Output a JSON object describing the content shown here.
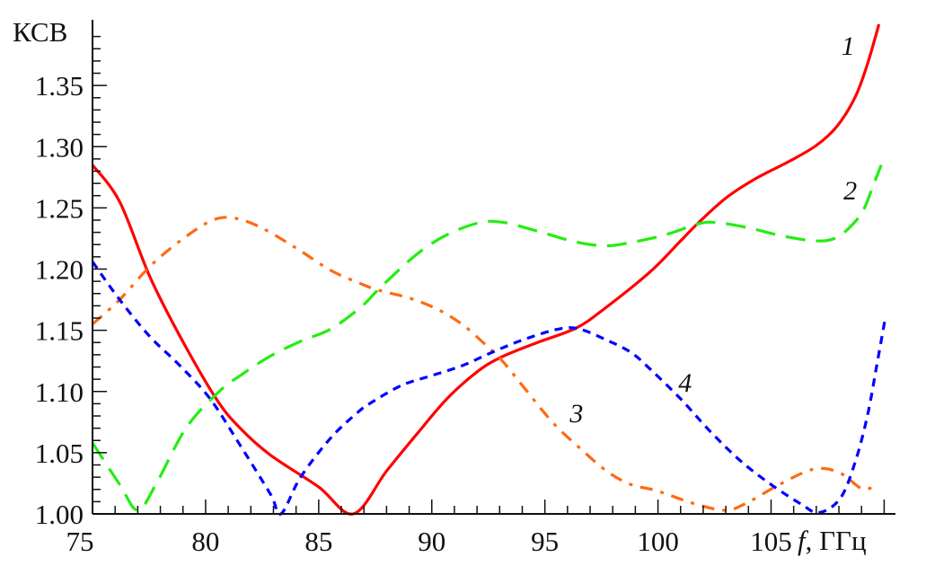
{
  "chart_data": {
    "type": "line",
    "title": "",
    "ylabel": "КСВ",
    "xlabel_var": "f",
    "xlabel_unit": ", ГГц",
    "xlim": [
      75,
      110.5
    ],
    "ylim": [
      1.0,
      1.4
    ],
    "x_ticks": [
      75,
      80,
      85,
      90,
      95,
      100,
      105
    ],
    "x_tick_labels": [
      "75",
      "80",
      "85",
      "90",
      "95",
      "100",
      "105"
    ],
    "y_ticks": [
      1.0,
      1.05,
      1.1,
      1.15,
      1.2,
      1.25,
      1.3,
      1.35
    ],
    "y_tick_labels": [
      "1.00",
      "1.05",
      "1.10",
      "1.15",
      "1.20",
      "1.25",
      "1.30",
      "1.35"
    ],
    "grid": false,
    "legend": "none (curves labelled by numbers)",
    "series": [
      {
        "name": "1",
        "color": "#ff0000",
        "style": "solid",
        "label_at": [
          108.4,
          1.375
        ],
        "points": [
          [
            75,
            1.285
          ],
          [
            76.2,
            1.255
          ],
          [
            77.53,
            1.194
          ],
          [
            78.87,
            1.145
          ],
          [
            80.47,
            1.094
          ],
          [
            81.53,
            1.07
          ],
          [
            82.87,
            1.048
          ],
          [
            85.0,
            1.022
          ],
          [
            86.53,
            1.0
          ],
          [
            88,
            1.035
          ],
          [
            89.33,
            1.065
          ],
          [
            90.67,
            1.094
          ],
          [
            92,
            1.116
          ],
          [
            93.07,
            1.128
          ],
          [
            94.67,
            1.14
          ],
          [
            96.4,
            1.152
          ],
          [
            97.73,
            1.169
          ],
          [
            99.67,
            1.198
          ],
          [
            101,
            1.223
          ],
          [
            101.8,
            1.238
          ],
          [
            103,
            1.258
          ],
          [
            104.33,
            1.274
          ],
          [
            105.8,
            1.288
          ],
          [
            107,
            1.301
          ],
          [
            107.93,
            1.317
          ],
          [
            108.73,
            1.341
          ],
          [
            109.27,
            1.368
          ],
          [
            109.77,
            1.4
          ]
        ]
      },
      {
        "name": "2",
        "color": "#22ee11",
        "style": "dashed",
        "label_at": [
          108.5,
          1.257
        ],
        "points": [
          [
            75,
            1.058
          ],
          [
            76.2,
            1.024
          ],
          [
            77.0,
            1.003
          ],
          [
            77.8,
            1.024
          ],
          [
            79.13,
            1.07
          ],
          [
            80.6,
            1.1
          ],
          [
            81.53,
            1.113
          ],
          [
            82.87,
            1.129
          ],
          [
            84.2,
            1.141
          ],
          [
            85.53,
            1.151
          ],
          [
            86.87,
            1.169
          ],
          [
            87.73,
            1.185
          ],
          [
            89.33,
            1.212
          ],
          [
            90.67,
            1.228
          ],
          [
            92.13,
            1.238
          ],
          [
            93.2,
            1.238
          ],
          [
            94.67,
            1.231
          ],
          [
            96.4,
            1.222
          ],
          [
            97.73,
            1.219
          ],
          [
            98.87,
            1.222
          ],
          [
            100.33,
            1.228
          ],
          [
            101.8,
            1.237
          ],
          [
            102.6,
            1.238
          ],
          [
            103.93,
            1.234
          ],
          [
            105.53,
            1.227
          ],
          [
            107,
            1.223
          ],
          [
            107.93,
            1.226
          ],
          [
            108.73,
            1.239
          ],
          [
            109.13,
            1.25
          ],
          [
            109.53,
            1.269
          ],
          [
            109.87,
            1.285
          ]
        ]
      },
      {
        "name": "3",
        "color": "#ff6a13",
        "style": "dash-dot",
        "label_at": [
          96.4,
          1.075
        ],
        "points": [
          [
            75,
            1.155
          ],
          [
            76.2,
            1.175
          ],
          [
            77.53,
            1.202
          ],
          [
            78.87,
            1.223
          ],
          [
            80.2,
            1.239
          ],
          [
            81.13,
            1.242
          ],
          [
            82.33,
            1.235
          ],
          [
            83.93,
            1.218
          ],
          [
            85.53,
            1.199
          ],
          [
            86.87,
            1.188
          ],
          [
            87.6,
            1.183
          ],
          [
            89.07,
            1.176
          ],
          [
            90.27,
            1.167
          ],
          [
            91.33,
            1.155
          ],
          [
            92.27,
            1.14
          ],
          [
            93.07,
            1.126
          ],
          [
            94,
            1.105
          ],
          [
            95.33,
            1.075
          ],
          [
            96.53,
            1.054
          ],
          [
            97.73,
            1.035
          ],
          [
            98.8,
            1.024
          ],
          [
            99.93,
            1.019
          ],
          [
            101.67,
            1.008
          ],
          [
            103,
            1.003
          ],
          [
            103.93,
            1.009
          ],
          [
            105.27,
            1.023
          ],
          [
            106.6,
            1.035
          ],
          [
            107.4,
            1.037
          ],
          [
            108.2,
            1.032
          ],
          [
            108.73,
            1.024
          ],
          [
            109.13,
            1.02
          ],
          [
            109.67,
            1.023
          ]
        ]
      },
      {
        "name": "4",
        "color": "#0000ff",
        "style": "dotted-dash",
        "label_at": [
          101.2,
          1.1
        ],
        "points": [
          [
            75,
            1.206
          ],
          [
            76.2,
            1.175
          ],
          [
            77.53,
            1.145
          ],
          [
            78.87,
            1.121
          ],
          [
            80.2,
            1.094
          ],
          [
            81.53,
            1.056
          ],
          [
            82.87,
            1.016
          ],
          [
            83.33,
            1.0
          ],
          [
            84.2,
            1.03
          ],
          [
            85.53,
            1.062
          ],
          [
            86.73,
            1.083
          ],
          [
            87.33,
            1.091
          ],
          [
            88.67,
            1.105
          ],
          [
            90,
            1.113
          ],
          [
            91.33,
            1.121
          ],
          [
            92.67,
            1.132
          ],
          [
            94,
            1.142
          ],
          [
            95.6,
            1.151
          ],
          [
            96.53,
            1.151
          ],
          [
            97.73,
            1.142
          ],
          [
            98.8,
            1.132
          ],
          [
            99.67,
            1.118
          ],
          [
            101,
            1.094
          ],
          [
            102.33,
            1.067
          ],
          [
            103.67,
            1.043
          ],
          [
            105,
            1.024
          ],
          [
            106.33,
            1.008
          ],
          [
            107.13,
            1.001
          ],
          [
            108.07,
            1.013
          ],
          [
            108.73,
            1.043
          ],
          [
            109.27,
            1.081
          ],
          [
            109.67,
            1.121
          ],
          [
            110.04,
            1.159
          ]
        ]
      }
    ]
  }
}
